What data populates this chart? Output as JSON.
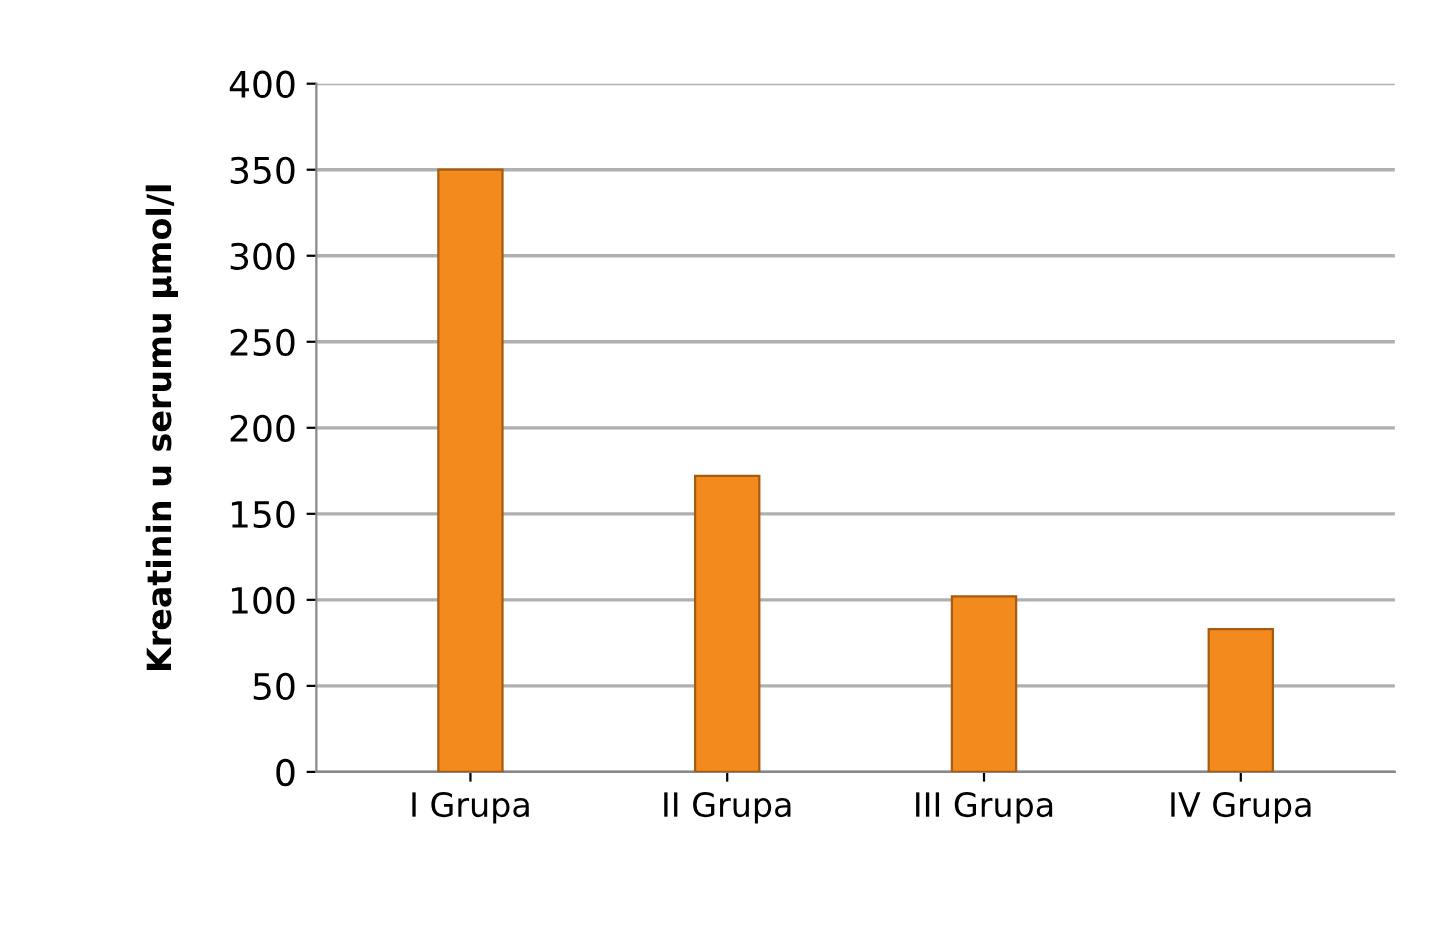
{
  "chart_data": {
    "type": "bar",
    "ylabel": "Kreatinin u serumu µmol/l",
    "categories": [
      "I Grupa",
      "II Grupa",
      "III Grupa",
      "IV Grupa"
    ],
    "values": [
      350,
      172,
      102,
      83
    ],
    "color": "#f28a1e",
    "ylim": [
      0,
      400
    ],
    "yticks": [
      0,
      50,
      100,
      150,
      200,
      250,
      300,
      350,
      400
    ],
    "grid": "y"
  }
}
